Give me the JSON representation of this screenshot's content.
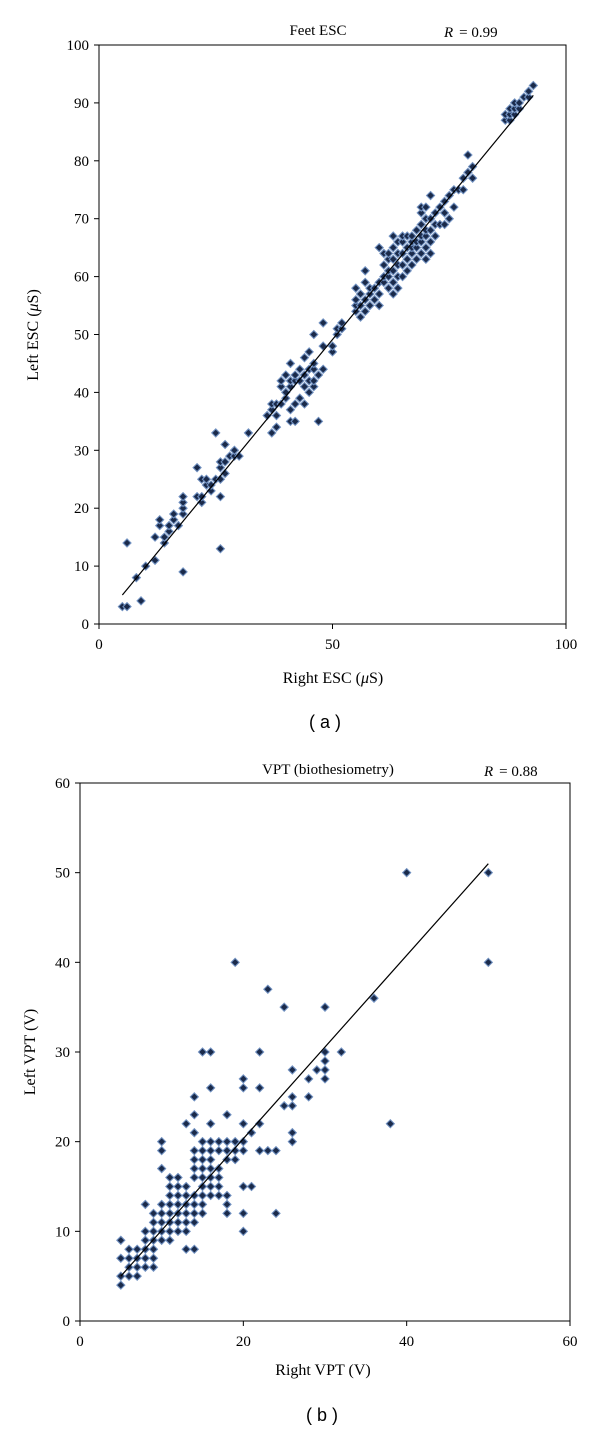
{
  "chart_data": [
    {
      "type": "scatter",
      "title": "Feet ESC",
      "annotation": "R = 0.99",
      "annotation_var": "R",
      "annotation_value": "= 0.99",
      "xlabel_pre": "Right ESC (",
      "xlabel_mu": "μ",
      "xlabel_post": "S)",
      "ylabel_pre": "Left ESC (",
      "ylabel_mu": "μ",
      "ylabel_post": "S)",
      "xlim": [
        0,
        100
      ],
      "ylim": [
        0,
        100
      ],
      "xticks": [
        0,
        50,
        100
      ],
      "yticks": [
        0,
        10,
        20,
        30,
        40,
        50,
        60,
        70,
        80,
        90,
        100
      ],
      "panel_label": "( a )",
      "marker_color": "#1a2a4a",
      "marker_edge": "#6f8fbf",
      "trendline": {
        "x": [
          5,
          93
        ],
        "y": [
          5,
          91.3
        ]
      },
      "points": [
        [
          5,
          3
        ],
        [
          6,
          3
        ],
        [
          6,
          14
        ],
        [
          8,
          8
        ],
        [
          9,
          4
        ],
        [
          10,
          10
        ],
        [
          12,
          11
        ],
        [
          12,
          15
        ],
        [
          13,
          17
        ],
        [
          13,
          18
        ],
        [
          14,
          14
        ],
        [
          14,
          15
        ],
        [
          15,
          16
        ],
        [
          15,
          17
        ],
        [
          16,
          18
        ],
        [
          16,
          19
        ],
        [
          17,
          17
        ],
        [
          18,
          9
        ],
        [
          18,
          19
        ],
        [
          18,
          20
        ],
        [
          18,
          21
        ],
        [
          18,
          22
        ],
        [
          21,
          22
        ],
        [
          21,
          27
        ],
        [
          22,
          21
        ],
        [
          22,
          22
        ],
        [
          22,
          25
        ],
        [
          23,
          24
        ],
        [
          23,
          25
        ],
        [
          24,
          23
        ],
        [
          24,
          24
        ],
        [
          25,
          25
        ],
        [
          25,
          33
        ],
        [
          26,
          13
        ],
        [
          26,
          22
        ],
        [
          26,
          25
        ],
        [
          26,
          27
        ],
        [
          26,
          28
        ],
        [
          27,
          26
        ],
        [
          27,
          28
        ],
        [
          27,
          31
        ],
        [
          28,
          29
        ],
        [
          29,
          29
        ],
        [
          29,
          30
        ],
        [
          30,
          29
        ],
        [
          32,
          33
        ],
        [
          36,
          36
        ],
        [
          37,
          33
        ],
        [
          37,
          37
        ],
        [
          37,
          38
        ],
        [
          38,
          34
        ],
        [
          38,
          36
        ],
        [
          38,
          38
        ],
        [
          39,
          38
        ],
        [
          39,
          41
        ],
        [
          39,
          42
        ],
        [
          40,
          39
        ],
        [
          40,
          40
        ],
        [
          40,
          43
        ],
        [
          41,
          35
        ],
        [
          41,
          37
        ],
        [
          41,
          41
        ],
        [
          41,
          42
        ],
        [
          41,
          45
        ],
        [
          42,
          35
        ],
        [
          42,
          38
        ],
        [
          42,
          42
        ],
        [
          42,
          43
        ],
        [
          43,
          39
        ],
        [
          43,
          42
        ],
        [
          43,
          44
        ],
        [
          44,
          38
        ],
        [
          44,
          41
        ],
        [
          44,
          43
        ],
        [
          44,
          46
        ],
        [
          45,
          40
        ],
        [
          45,
          42
        ],
        [
          45,
          44
        ],
        [
          45,
          47
        ],
        [
          46,
          41
        ],
        [
          46,
          42
        ],
        [
          46,
          44
        ],
        [
          46,
          45
        ],
        [
          46,
          50
        ],
        [
          47,
          35
        ],
        [
          47,
          43
        ],
        [
          48,
          44
        ],
        [
          48,
          48
        ],
        [
          48,
          52
        ],
        [
          50,
          47
        ],
        [
          50,
          48
        ],
        [
          51,
          50
        ],
        [
          51,
          51
        ],
        [
          52,
          51
        ],
        [
          52,
          52
        ],
        [
          55,
          54
        ],
        [
          55,
          55
        ],
        [
          55,
          56
        ],
        [
          55,
          58
        ],
        [
          56,
          53
        ],
        [
          56,
          55
        ],
        [
          56,
          57
        ],
        [
          57,
          54
        ],
        [
          57,
          56
        ],
        [
          57,
          59
        ],
        [
          57,
          61
        ],
        [
          58,
          55
        ],
        [
          58,
          57
        ],
        [
          58,
          58
        ],
        [
          59,
          56
        ],
        [
          59,
          58
        ],
        [
          60,
          55
        ],
        [
          60,
          57
        ],
        [
          60,
          59
        ],
        [
          60,
          65
        ],
        [
          61,
          59
        ],
        [
          61,
          60
        ],
        [
          61,
          62
        ],
        [
          61,
          64
        ],
        [
          62,
          58
        ],
        [
          62,
          60
        ],
        [
          62,
          61
        ],
        [
          62,
          63
        ],
        [
          62,
          64
        ],
        [
          63,
          57
        ],
        [
          63,
          59
        ],
        [
          63,
          61
        ],
        [
          63,
          63
        ],
        [
          63,
          65
        ],
        [
          63,
          67
        ],
        [
          64,
          58
        ],
        [
          64,
          60
        ],
        [
          64,
          62
        ],
        [
          64,
          64
        ],
        [
          64,
          66
        ],
        [
          65,
          60
        ],
        [
          65,
          62
        ],
        [
          65,
          64
        ],
        [
          65,
          66
        ],
        [
          65,
          67
        ],
        [
          66,
          61
        ],
        [
          66,
          63
        ],
        [
          66,
          65
        ],
        [
          66,
          67
        ],
        [
          67,
          62
        ],
        [
          67,
          64
        ],
        [
          67,
          65
        ],
        [
          67,
          66
        ],
        [
          67,
          67
        ],
        [
          68,
          63
        ],
        [
          68,
          65
        ],
        [
          68,
          66
        ],
        [
          68,
          68
        ],
        [
          69,
          64
        ],
        [
          69,
          66
        ],
        [
          69,
          67
        ],
        [
          69,
          69
        ],
        [
          69,
          71
        ],
        [
          69,
          72
        ],
        [
          70,
          63
        ],
        [
          70,
          65
        ],
        [
          70,
          67
        ],
        [
          70,
          68
        ],
        [
          70,
          70
        ],
        [
          70,
          72
        ],
        [
          71,
          64
        ],
        [
          71,
          66
        ],
        [
          71,
          68
        ],
        [
          71,
          70
        ],
        [
          71,
          74
        ],
        [
          72,
          67
        ],
        [
          72,
          69
        ],
        [
          72,
          71
        ],
        [
          73,
          69
        ],
        [
          73,
          72
        ],
        [
          74,
          69
        ],
        [
          74,
          71
        ],
        [
          74,
          73
        ],
        [
          75,
          70
        ],
        [
          75,
          74
        ],
        [
          76,
          72
        ],
        [
          76,
          75
        ],
        [
          77,
          75
        ],
        [
          78,
          75
        ],
        [
          78,
          77
        ],
        [
          79,
          78
        ],
        [
          79,
          81
        ],
        [
          80,
          77
        ],
        [
          80,
          79
        ],
        [
          87,
          87
        ],
        [
          87,
          88
        ],
        [
          88,
          87
        ],
        [
          88,
          88
        ],
        [
          88,
          89
        ],
        [
          89,
          88
        ],
        [
          89,
          89
        ],
        [
          89,
          90
        ],
        [
          90,
          89
        ],
        [
          90,
          90
        ],
        [
          91,
          91
        ],
        [
          92,
          91
        ],
        [
          92,
          92
        ],
        [
          93,
          93
        ]
      ]
    },
    {
      "type": "scatter",
      "title": "VPT (biothesiometry)",
      "annotation": "R = 0.88",
      "annotation_var": "R",
      "annotation_value": "= 0.88",
      "xlabel": "Right VPT (V)",
      "ylabel": "Left VPT (V)",
      "xlim": [
        0,
        60
      ],
      "ylim": [
        0,
        60
      ],
      "xticks": [
        0,
        20,
        40,
        60
      ],
      "yticks": [
        0,
        10,
        20,
        30,
        40,
        50,
        60
      ],
      "panel_label": "( b )",
      "marker_color": "#1a2a4a",
      "marker_edge": "#6f8fbf",
      "trendline": {
        "x": [
          5,
          50
        ],
        "y": [
          5,
          51
        ]
      },
      "points": [
        [
          5,
          4
        ],
        [
          5,
          5
        ],
        [
          5,
          7
        ],
        [
          5,
          9
        ],
        [
          6,
          5
        ],
        [
          6,
          6
        ],
        [
          6,
          7
        ],
        [
          6,
          8
        ],
        [
          7,
          5
        ],
        [
          7,
          6
        ],
        [
          7,
          7
        ],
        [
          7,
          8
        ],
        [
          8,
          6
        ],
        [
          8,
          7
        ],
        [
          8,
          8
        ],
        [
          8,
          9
        ],
        [
          8,
          10
        ],
        [
          8,
          13
        ],
        [
          9,
          6
        ],
        [
          9,
          7
        ],
        [
          9,
          8
        ],
        [
          9,
          9
        ],
        [
          9,
          10
        ],
        [
          9,
          11
        ],
        [
          9,
          12
        ],
        [
          10,
          9
        ],
        [
          10,
          10
        ],
        [
          10,
          11
        ],
        [
          10,
          12
        ],
        [
          10,
          13
        ],
        [
          10,
          17
        ],
        [
          10,
          19
        ],
        [
          10,
          20
        ],
        [
          11,
          9
        ],
        [
          11,
          10
        ],
        [
          11,
          11
        ],
        [
          11,
          12
        ],
        [
          11,
          13
        ],
        [
          11,
          14
        ],
        [
          11,
          15
        ],
        [
          11,
          16
        ],
        [
          12,
          10
        ],
        [
          12,
          11
        ],
        [
          12,
          12
        ],
        [
          12,
          13
        ],
        [
          12,
          14
        ],
        [
          12,
          15
        ],
        [
          12,
          16
        ],
        [
          13,
          10
        ],
        [
          13,
          11
        ],
        [
          13,
          12
        ],
        [
          13,
          13
        ],
        [
          13,
          14
        ],
        [
          13,
          15
        ],
        [
          13,
          22
        ],
        [
          13,
          8
        ],
        [
          14,
          8
        ],
        [
          14,
          11
        ],
        [
          14,
          12
        ],
        [
          14,
          13
        ],
        [
          14,
          14
        ],
        [
          14,
          16
        ],
        [
          14,
          17
        ],
        [
          14,
          18
        ],
        [
          14,
          19
        ],
        [
          14,
          21
        ],
        [
          14,
          23
        ],
        [
          14,
          25
        ],
        [
          15,
          12
        ],
        [
          15,
          13
        ],
        [
          15,
          14
        ],
        [
          15,
          15
        ],
        [
          15,
          16
        ],
        [
          15,
          17
        ],
        [
          15,
          18
        ],
        [
          15,
          19
        ],
        [
          15,
          20
        ],
        [
          15,
          30
        ],
        [
          16,
          14
        ],
        [
          16,
          15
        ],
        [
          16,
          16
        ],
        [
          16,
          17
        ],
        [
          16,
          18
        ],
        [
          16,
          19
        ],
        [
          16,
          20
        ],
        [
          16,
          22
        ],
        [
          16,
          26
        ],
        [
          16,
          30
        ],
        [
          17,
          14
        ],
        [
          17,
          15
        ],
        [
          17,
          16
        ],
        [
          17,
          17
        ],
        [
          17,
          19
        ],
        [
          17,
          20
        ],
        [
          18,
          12
        ],
        [
          18,
          13
        ],
        [
          18,
          14
        ],
        [
          18,
          18
        ],
        [
          18,
          19
        ],
        [
          18,
          20
        ],
        [
          18,
          23
        ],
        [
          19,
          18
        ],
        [
          19,
          19
        ],
        [
          19,
          20
        ],
        [
          19,
          40
        ],
        [
          20,
          10
        ],
        [
          20,
          12
        ],
        [
          20,
          15
        ],
        [
          20,
          19
        ],
        [
          20,
          20
        ],
        [
          20,
          22
        ],
        [
          20,
          26
        ],
        [
          20,
          27
        ],
        [
          21,
          15
        ],
        [
          21,
          21
        ],
        [
          22,
          19
        ],
        [
          22,
          22
        ],
        [
          22,
          26
        ],
        [
          22,
          30
        ],
        [
          23,
          19
        ],
        [
          23,
          37
        ],
        [
          24,
          12
        ],
        [
          24,
          19
        ],
        [
          25,
          24
        ],
        [
          25,
          35
        ],
        [
          26,
          20
        ],
        [
          26,
          21
        ],
        [
          26,
          24
        ],
        [
          26,
          25
        ],
        [
          26,
          28
        ],
        [
          28,
          25
        ],
        [
          28,
          27
        ],
        [
          29,
          28
        ],
        [
          30,
          27
        ],
        [
          30,
          28
        ],
        [
          30,
          29
        ],
        [
          30,
          30
        ],
        [
          30,
          35
        ],
        [
          32,
          30
        ],
        [
          36,
          36
        ],
        [
          38,
          22
        ],
        [
          40,
          50
        ],
        [
          50,
          40
        ],
        [
          50,
          50
        ]
      ]
    }
  ]
}
